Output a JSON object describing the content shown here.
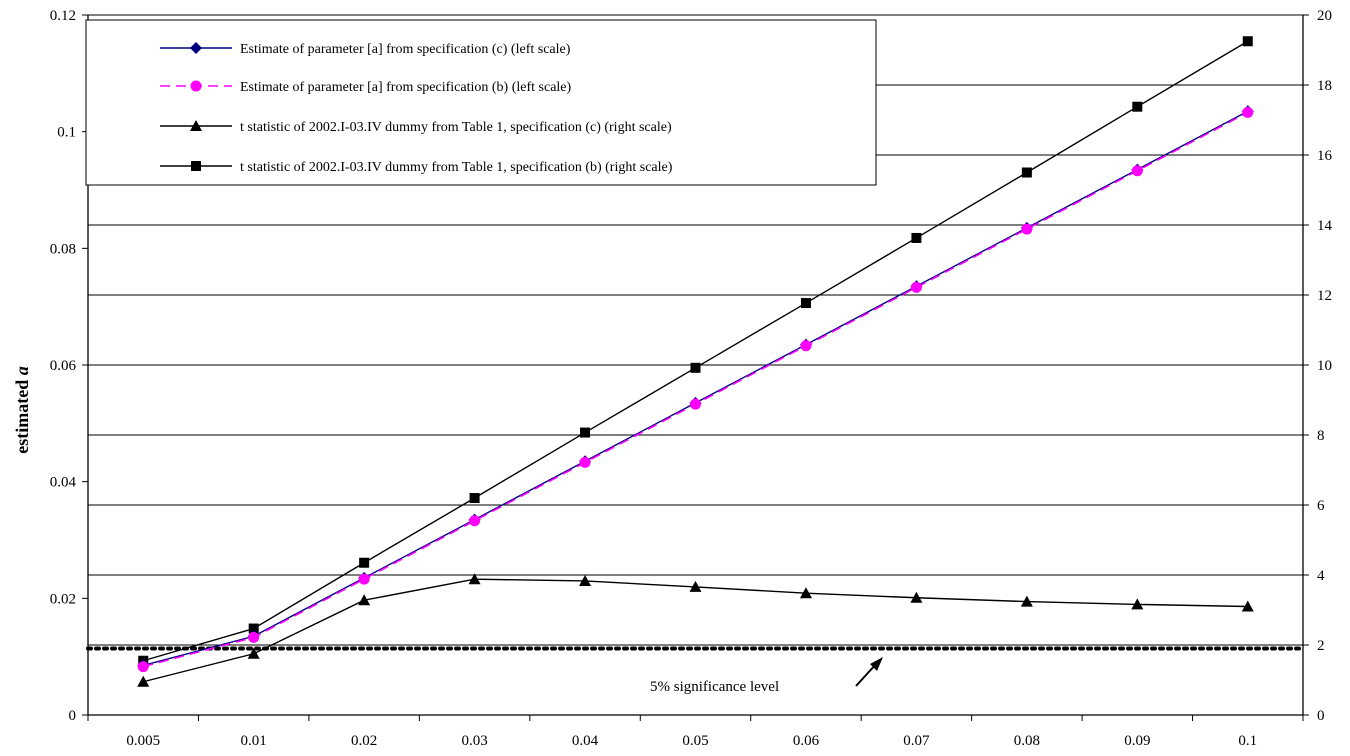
{
  "chart_data": {
    "type": "line",
    "title": "",
    "xlabel": "",
    "ylabel": "estimated",
    "ylabel_symbol": "a",
    "x": [
      "0.005",
      "0.01",
      "0.02",
      "0.03",
      "0.04",
      "0.05",
      "0.06",
      "0.07",
      "0.08",
      "0.09",
      "0.1"
    ],
    "ylim_left": [
      0,
      0.12
    ],
    "ylim_right": [
      0,
      20
    ],
    "yticks_left": [
      "0",
      "0.02",
      "0.04",
      "0.06",
      "0.08",
      "0.1",
      "0.12"
    ],
    "yticks_right": [
      "0",
      "2",
      "4",
      "6",
      "8",
      "10",
      "12",
      "14",
      "16",
      "18",
      "20"
    ],
    "grid": "horizontal",
    "legend_position": "top-left",
    "series": [
      {
        "name": "Estimate of parameter [a] from specification (c)  (left scale)",
        "axis": "left",
        "color": "#000080",
        "marker": "diamond",
        "dash": false,
        "values": [
          0.0085,
          0.0135,
          0.0235,
          0.0335,
          0.0435,
          0.0535,
          0.0635,
          0.0735,
          0.0835,
          0.0935,
          0.1035
        ]
      },
      {
        "name": "Estimate of parameter [a] from specification (b)  (left scale)",
        "axis": "left",
        "color": "#ff00ff",
        "marker": "circle",
        "dash": true,
        "values": [
          0.0083,
          0.0133,
          0.0233,
          0.0333,
          0.0433,
          0.0533,
          0.0633,
          0.0733,
          0.0833,
          0.0933,
          0.1033
        ]
      },
      {
        "name": "t statistic of  2002.I-03.IV dummy from Table 1, specification (c) (right scale)",
        "axis": "right",
        "color": "#000000",
        "marker": "triangle",
        "dash": false,
        "values": [
          0.95,
          1.75,
          3.28,
          3.88,
          3.83,
          3.66,
          3.48,
          3.35,
          3.24,
          3.16,
          3.1
        ]
      },
      {
        "name": "t statistic of 2002.I-03.IV dummy from Table 1, specification (b) (right scale)",
        "axis": "right",
        "color": "#000000",
        "marker": "square",
        "dash": false,
        "values": [
          1.55,
          2.47,
          4.35,
          6.2,
          8.07,
          9.92,
          11.77,
          13.63,
          15.5,
          17.38,
          19.25
        ]
      }
    ],
    "reference_line": {
      "axis": "right",
      "value": 1.9,
      "style": "dotted"
    },
    "annotation": {
      "text": "5%  significance level"
    }
  }
}
